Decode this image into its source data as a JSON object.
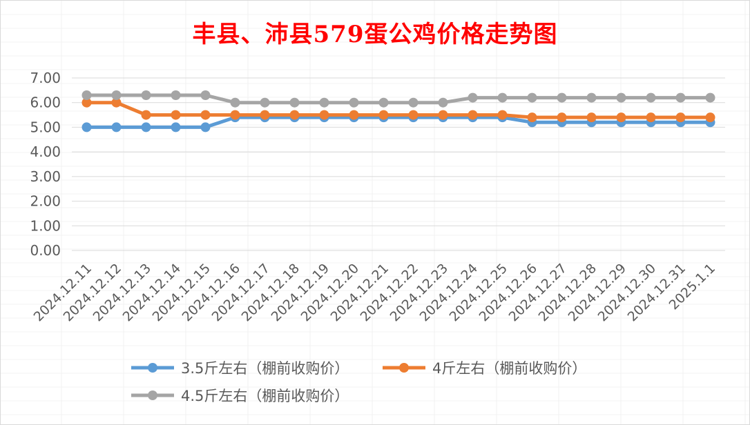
{
  "chart_data": {
    "type": "line",
    "title": "丰县、沛县579蛋公鸡价格走势图",
    "xlabel": "",
    "ylabel": "",
    "ylim": [
      0,
      7
    ],
    "ytick_step": 1,
    "y_decimals": 2,
    "grid": true,
    "legend_position": "bottom",
    "categories": [
      "2024.12.11",
      "2024.12.12",
      "2024.12.13",
      "2024.12.14",
      "2024.12.15",
      "2024.12.16",
      "2024.12.17",
      "2024.12.18",
      "2024.12.19",
      "2024.12.20",
      "2024.12.21",
      "2024.12.22",
      "2024.12.23",
      "2024.12.24",
      "2024.12.25",
      "2024.12.26",
      "2024.12.27",
      "2024.12.28",
      "2024.12.29",
      "2024.12.30",
      "2024.12.31",
      "2025.1.1"
    ],
    "series": [
      {
        "name": "3.5斤左右（棚前收购价）",
        "color": "#5b9bd5",
        "values": [
          5.0,
          5.0,
          5.0,
          5.0,
          5.0,
          5.4,
          5.4,
          5.4,
          5.4,
          5.4,
          5.4,
          5.4,
          5.4,
          5.4,
          5.4,
          5.2,
          5.2,
          5.2,
          5.2,
          5.2,
          5.2,
          5.2
        ]
      },
      {
        "name": "4斤左右（棚前收购价）",
        "color": "#ed7d31",
        "values": [
          6.0,
          6.0,
          5.5,
          5.5,
          5.5,
          5.5,
          5.5,
          5.5,
          5.5,
          5.5,
          5.5,
          5.5,
          5.5,
          5.5,
          5.5,
          5.4,
          5.4,
          5.4,
          5.4,
          5.4,
          5.4,
          5.4
        ]
      },
      {
        "name": "4.5斤左右（棚前收购价）",
        "color": "#a5a5a5",
        "values": [
          6.3,
          6.3,
          6.3,
          6.3,
          6.3,
          6.0,
          6.0,
          6.0,
          6.0,
          6.0,
          6.0,
          6.0,
          6.0,
          6.2,
          6.2,
          6.2,
          6.2,
          6.2,
          6.2,
          6.2,
          6.2,
          6.2
        ]
      }
    ]
  }
}
